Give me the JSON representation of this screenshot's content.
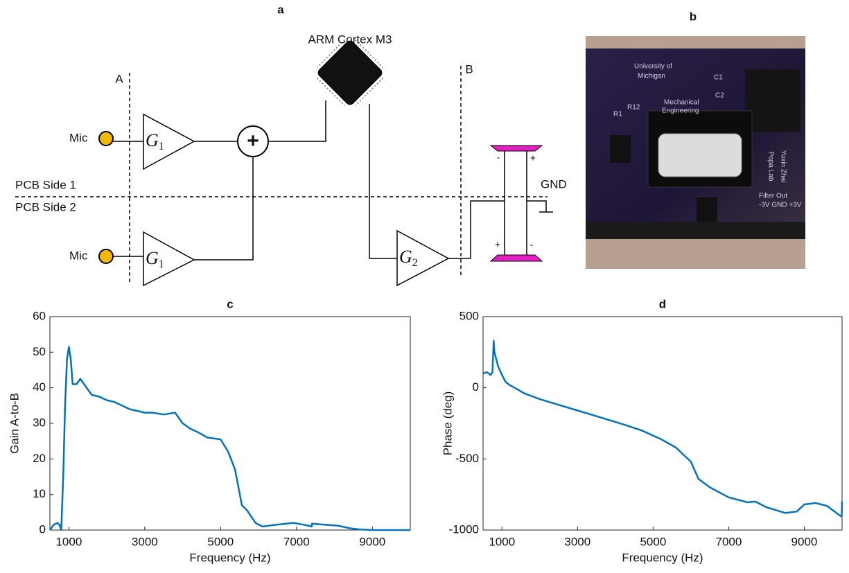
{
  "diagram": {
    "label": "a",
    "processor": "ARM Cortex M3",
    "plane_a": "A",
    "plane_b": "B",
    "pcb_side_1": "PCB Side 1",
    "pcb_side_2": "PCB Side 2",
    "mics": [
      "Mic",
      "Mic"
    ],
    "amplifiers": [
      {
        "symbol": "G",
        "subscript": "1"
      },
      {
        "symbol": "G",
        "subscript": "1"
      },
      {
        "symbol": "G",
        "subscript": "2"
      }
    ],
    "summer": "+",
    "ground": "GND",
    "speaker_terminals": [
      "-",
      "+",
      "+",
      "-"
    ]
  },
  "photo": {
    "label": "b",
    "board_texts": [
      "University of",
      "Michigan",
      "Mechanical",
      "Engineering",
      "Yuxin Zhai",
      "Popa Lab",
      "C1",
      "C2",
      "R1",
      "R12",
      "-3V GND +3V",
      "Filter Out"
    ]
  },
  "chart_data": [
    {
      "type": "line",
      "title": "c",
      "xlabel": "Frequency (Hz)",
      "ylabel": "Gain A-to-B",
      "x": [
        500,
        600,
        700,
        750,
        800,
        850,
        900,
        950,
        1000,
        1050,
        1100,
        1200,
        1300,
        1400,
        1600,
        1800,
        2000,
        2200,
        2400,
        2600,
        3000,
        3200,
        3500,
        3800,
        4000,
        4200,
        4400,
        4650,
        5000,
        5200,
        5380,
        5560,
        5700,
        5920,
        6100,
        6470,
        6920,
        7190,
        7400,
        7410,
        7730,
        8100,
        8400,
        8640,
        9000,
        9500,
        10000
      ],
      "series": [
        {
          "color": "#0072bd",
          "values": [
            0,
            1.5,
            2,
            1.5,
            0,
            15,
            35,
            48,
            51.5,
            48,
            41,
            41,
            42.5,
            41,
            38,
            37.5,
            36.5,
            36,
            35,
            34,
            33,
            33,
            32.5,
            33,
            30,
            28.5,
            27.5,
            26,
            25.5,
            22,
            17,
            7,
            5.5,
            2,
            1,
            1.5,
            2,
            1.5,
            1,
            1.8,
            1.5,
            1.2,
            0.5,
            0.2,
            0,
            0,
            0
          ]
        }
      ],
      "xlim": [
        500,
        10000
      ],
      "ylim": [
        0,
        60
      ],
      "xticks": [
        1000,
        3000,
        5000,
        7000,
        9000
      ],
      "yticks": [
        0,
        10,
        20,
        30,
        40,
        50,
        60
      ]
    },
    {
      "type": "line",
      "title": "d",
      "xlabel": "Frequency (Hz)",
      "ylabel": "Phase (deg)",
      "x": [
        500,
        600,
        700,
        750,
        780,
        800,
        900,
        1000,
        1100,
        1200,
        1400,
        1600,
        2000,
        2500,
        3000,
        3500,
        4000,
        4300,
        4700,
        5200,
        5600,
        6000,
        6100,
        6200,
        6500,
        7000,
        7500,
        7700,
        8000,
        8500,
        8800,
        9000,
        9300,
        9600,
        9900,
        9990,
        10000
      ],
      "series": [
        {
          "color": "#0072bd",
          "values": [
            100,
            110,
            90,
            110,
            330,
            250,
            150,
            90,
            40,
            20,
            -10,
            -40,
            -80,
            -120,
            -160,
            -200,
            -240,
            -265,
            -300,
            -360,
            -420,
            -520,
            -580,
            -640,
            -700,
            -770,
            -805,
            -800,
            -840,
            -880,
            -870,
            -820,
            -810,
            -830,
            -890,
            -905,
            -800
          ]
        }
      ],
      "xlim": [
        500,
        10000
      ],
      "ylim": [
        -1000,
        500
      ],
      "xticks": [
        1000,
        3000,
        5000,
        7000,
        9000
      ],
      "yticks": [
        -1000,
        -500,
        0,
        500
      ]
    }
  ]
}
